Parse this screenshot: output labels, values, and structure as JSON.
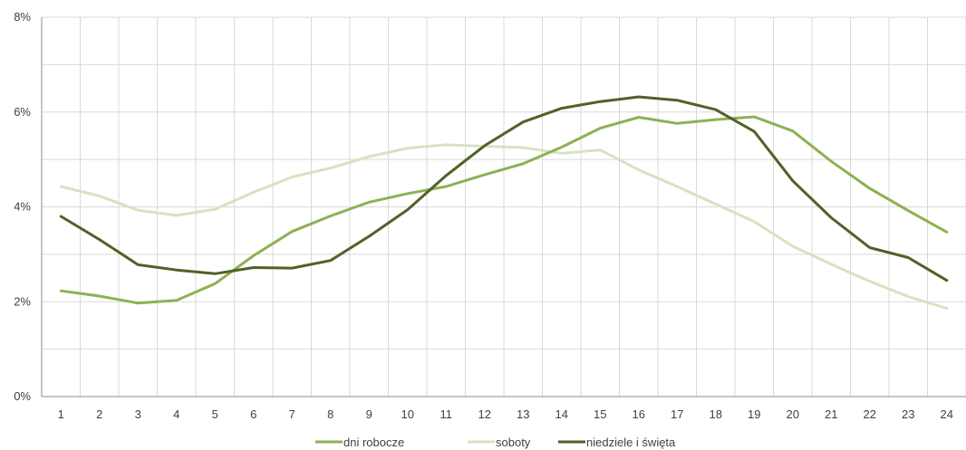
{
  "chart_data": {
    "type": "line",
    "title": "",
    "xlabel": "",
    "ylabel": "",
    "categories": [
      "1",
      "2",
      "3",
      "4",
      "5",
      "6",
      "7",
      "8",
      "9",
      "10",
      "11",
      "12",
      "13",
      "14",
      "15",
      "16",
      "17",
      "18",
      "19",
      "20",
      "21",
      "22",
      "23",
      "24"
    ],
    "y_ticks": [
      "0%",
      "2%",
      "4%",
      "6%",
      "8%"
    ],
    "ylim": [
      0,
      8
    ],
    "y_unit": "%",
    "grid": "on",
    "legend_position": "bottom",
    "series": [
      {
        "name": "dni robocze",
        "color": "#8db152",
        "values": [
          2.23,
          2.12,
          1.97,
          2.03,
          2.38,
          2.97,
          3.48,
          3.81,
          4.1,
          4.28,
          4.43,
          4.68,
          4.91,
          5.26,
          5.66,
          5.89,
          5.76,
          5.84,
          5.9,
          5.6,
          4.96,
          4.39,
          3.92,
          3.47
        ]
      },
      {
        "name": "soboty",
        "color": "#d6e3c0",
        "values": [
          4.43,
          4.23,
          3.93,
          3.82,
          3.95,
          4.31,
          4.63,
          4.82,
          5.06,
          5.24,
          5.31,
          5.28,
          5.25,
          5.13,
          5.2,
          4.78,
          4.43,
          4.06,
          3.69,
          3.17,
          2.79,
          2.43,
          2.11,
          1.86
        ]
      },
      {
        "name": "niedziele i święta",
        "color": "#4f6228",
        "values": [
          3.8,
          3.31,
          2.78,
          2.67,
          2.59,
          2.72,
          2.71,
          2.87,
          3.38,
          3.94,
          4.66,
          5.29,
          5.79,
          6.08,
          6.22,
          6.32,
          6.25,
          6.05,
          5.59,
          4.55,
          3.77,
          3.14,
          2.93,
          2.45
        ]
      }
    ]
  }
}
